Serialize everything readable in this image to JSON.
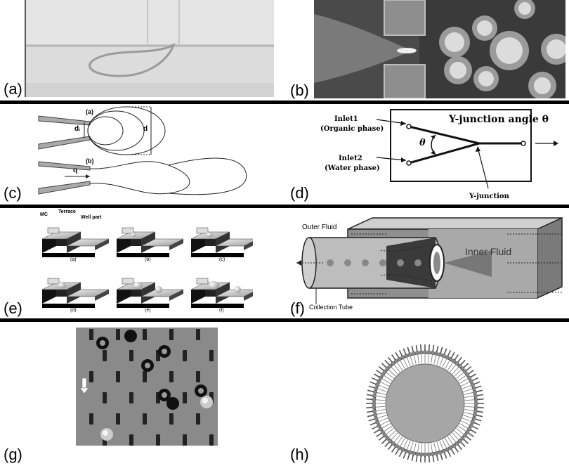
{
  "panels": [
    {
      "id": "a",
      "label": "(a)"
    },
    {
      "id": "b",
      "label": "(b)"
    },
    {
      "id": "c",
      "label": "(c)",
      "texts": {
        "sub_a": "(a)",
        "sub_b": "(b)",
        "d_i": "dᵢ",
        "d": "d",
        "q": "q"
      }
    },
    {
      "id": "d",
      "label": "(d)",
      "texts": {
        "title": "Y-junction angle θ",
        "inlet1": "Inlet1",
        "inlet1_phase": "(Organic phase)",
        "inlet2": "Inlet2",
        "inlet2_phase": "(Water phase)",
        "theta": "θ",
        "yjunction": "Y-junction"
      }
    },
    {
      "id": "e",
      "label": "(e)",
      "texts": {
        "mc": "MC",
        "terrace": "Terrace",
        "well": "Well part",
        "steps": [
          "(a)",
          "(b)",
          "(c)",
          "(d)",
          "(e)",
          "(f)"
        ]
      }
    },
    {
      "id": "f",
      "label": "(f)",
      "texts": {
        "outer": "Outer Fluid",
        "inner": "Inner Fluid",
        "collection": "Collection Tube"
      }
    },
    {
      "id": "g",
      "label": "(g)"
    },
    {
      "id": "h",
      "label": "(h)"
    }
  ],
  "colors": {
    "divider": "#000000",
    "photo_gray": "#d9d9d9",
    "micro_gray": "#8a8a8a"
  }
}
